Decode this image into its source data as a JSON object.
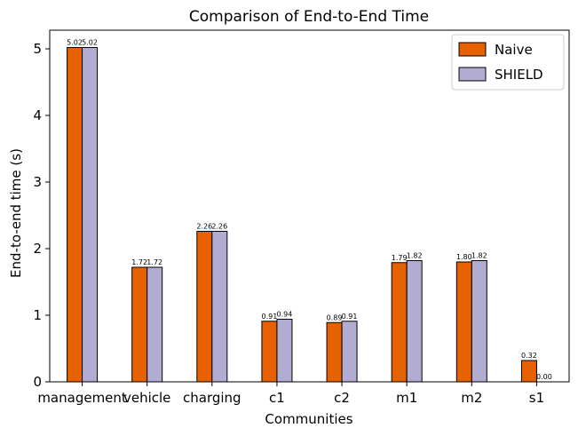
{
  "chart_data": {
    "type": "bar",
    "title": "Comparison of End-to-End Time",
    "xlabel": "Communities",
    "ylabel": "End-to-end time (s)",
    "categories": [
      "management",
      "vehicle",
      "charging",
      "c1",
      "c2",
      "m1",
      "m2",
      "s1"
    ],
    "series": [
      {
        "name": "Naive",
        "color": "#e66101",
        "values": [
          5.02,
          1.72,
          2.26,
          0.91,
          0.89,
          1.79,
          1.8,
          0.32
        ],
        "labels": [
          "5.02",
          "1.72",
          "2.26",
          "0.91",
          "0.89",
          "1.79",
          "1.80",
          "0.32"
        ]
      },
      {
        "name": "SHIELD",
        "color": "#b2abd2",
        "values": [
          5.02,
          1.72,
          2.26,
          0.94,
          0.91,
          1.82,
          1.82,
          0.0
        ],
        "labels": [
          "5.02",
          "1.72",
          "2.26",
          "0.94",
          "0.91",
          "1.82",
          "1.82",
          "0.00"
        ]
      }
    ],
    "ylim": [
      0,
      5.28
    ],
    "yticks": [
      0,
      1,
      2,
      3,
      4,
      5
    ],
    "grid": false,
    "legend": "top-right"
  }
}
